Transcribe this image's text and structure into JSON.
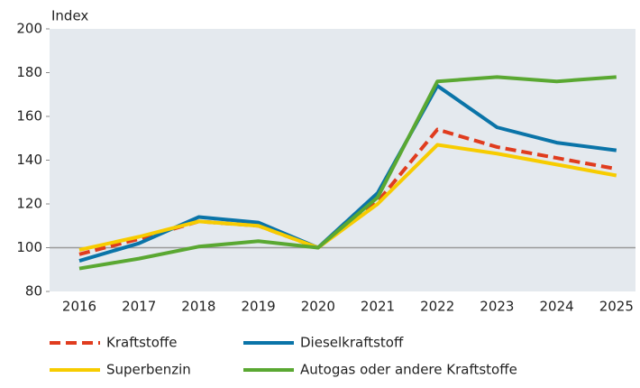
{
  "chart_data": {
    "type": "line",
    "y_label": "Index",
    "categories": [
      "2016",
      "2017",
      "2018",
      "2019",
      "2020",
      "2021",
      "2022",
      "2023",
      "2024",
      "2025"
    ],
    "series": [
      {
        "name": "Kraftstoffe",
        "color": "#e03c1e",
        "dashed": true,
        "values": [
          97,
          104,
          112,
          110,
          100,
          121,
          154,
          146,
          141,
          136
        ]
      },
      {
        "name": "Dieselkraftstoff",
        "color": "#0a74a8",
        "values": [
          94,
          102,
          114,
          111.5,
          100,
          125,
          174,
          155,
          148,
          144.5
        ]
      },
      {
        "name": "Superbenzin",
        "color": "#f7cc00",
        "values": [
          99,
          105,
          112,
          110,
          100,
          120,
          147,
          143,
          138,
          133
        ]
      },
      {
        "name": "Autogas oder andere Kraftstoffe",
        "color": "#5aa832",
        "values": [
          90.5,
          95,
          100.5,
          103,
          100,
          123,
          176,
          178,
          176,
          178
        ]
      }
    ],
    "ylim": [
      80,
      200
    ],
    "yticks": [
      80,
      100,
      120,
      140,
      160,
      180,
      200
    ],
    "reference_line": 100,
    "grid": false
  }
}
